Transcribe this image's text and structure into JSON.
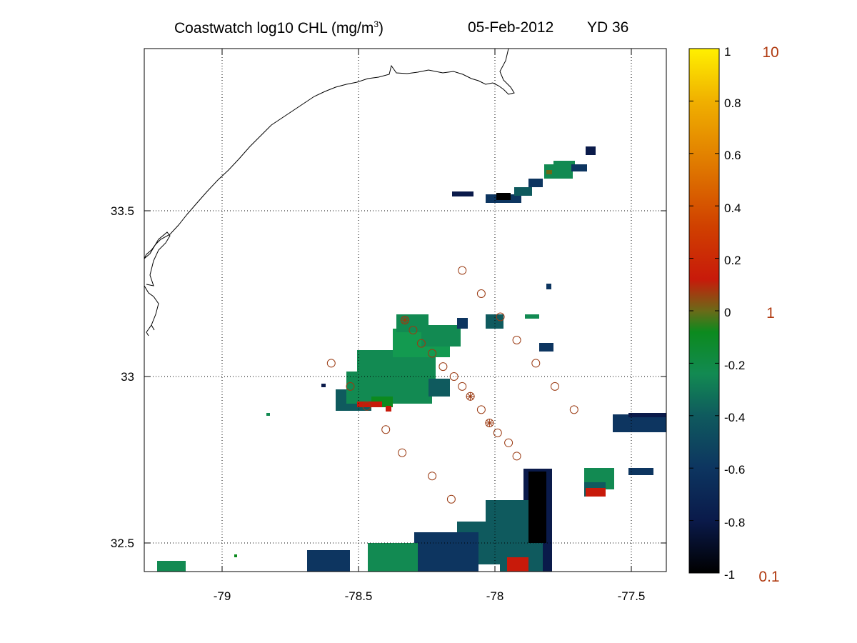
{
  "title": {
    "main": "Coastwatch  log10  CHL (mg/m",
    "sup": "3",
    "close": ")",
    "date": "05-Feb-2012",
    "yearday": "YD 36"
  },
  "map": {
    "x_ticks": [
      "-79",
      "-78.5",
      "-78",
      "-77.5"
    ],
    "x_tick_values": [
      -79,
      -78.5,
      -78,
      -77.5
    ],
    "y_ticks": [
      "33.5",
      "33",
      "32.5"
    ],
    "y_tick_values": [
      33.5,
      33,
      32.5
    ],
    "xlim": [
      -79.28,
      -77.37
    ],
    "ylim": [
      32.42,
      33.99
    ],
    "grid": "dotted"
  },
  "colorbar": {
    "ticks": [
      "1",
      "0.8",
      "0.6",
      "0.4",
      "0.2",
      "0",
      "-0.2",
      "-0.4",
      "-0.6",
      "-0.8",
      "-1"
    ],
    "tick_values": [
      1,
      0.8,
      0.6,
      0.4,
      0.2,
      0,
      -0.2,
      -0.4,
      -0.6,
      -0.8,
      -1
    ],
    "range": [
      -1,
      1
    ],
    "concentration_labels": [
      "10",
      "1",
      "0.1"
    ],
    "concentration_values": [
      1,
      0,
      -1
    ],
    "colormap": [
      "#000000",
      "#0a1a4a",
      "#0d3560",
      "#0f5a5e",
      "#128a52",
      "#0c8a1e",
      "#6b6a18",
      "#c81a0a",
      "#d04000",
      "#e07a00",
      "#f0b000",
      "#fff000"
    ]
  },
  "colors": {
    "station": "#9a3a12",
    "coast": "#000000"
  },
  "stations": {
    "circles": [
      [
        -78.12,
        33.32
      ],
      [
        -78.05,
        33.25
      ],
      [
        -77.98,
        33.18
      ],
      [
        -77.92,
        33.11
      ],
      [
        -77.85,
        33.04
      ],
      [
        -77.78,
        32.97
      ],
      [
        -77.71,
        32.9
      ],
      [
        -78.33,
        33.17
      ],
      [
        -78.3,
        33.14
      ],
      [
        -78.27,
        33.1
      ],
      [
        -78.23,
        33.07
      ],
      [
        -78.19,
        33.03
      ],
      [
        -78.15,
        33.0
      ],
      [
        -78.12,
        32.97
      ],
      [
        -78.09,
        32.94
      ],
      [
        -78.05,
        32.9
      ],
      [
        -78.02,
        32.86
      ],
      [
        -77.99,
        32.83
      ],
      [
        -77.95,
        32.8
      ],
      [
        -77.92,
        32.76
      ],
      [
        -78.6,
        33.04
      ],
      [
        -78.53,
        32.97
      ],
      [
        -78.47,
        32.91
      ],
      [
        -78.4,
        32.84
      ],
      [
        -78.34,
        32.77
      ],
      [
        -78.23,
        32.7
      ],
      [
        -78.16,
        32.63
      ]
    ],
    "crosses": [
      [
        -78.33,
        33.17
      ],
      [
        -78.09,
        32.94
      ],
      [
        -78.02,
        32.86
      ]
    ]
  }
}
